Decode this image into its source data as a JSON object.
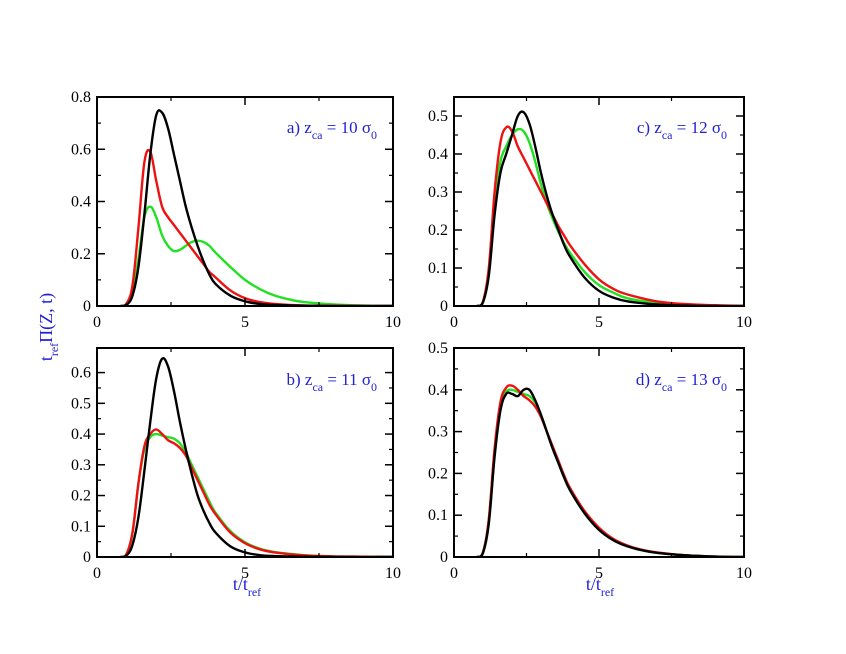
{
  "chart_data": {
    "type": "line",
    "xlabel": {
      "main": "t/t",
      "sub": "ref"
    },
    "ylabel": {
      "pre_main": "t",
      "pre_sub": "ref",
      "main": "Π(Z, t)"
    },
    "colors": {
      "black": "#000000",
      "red": "#ee1111",
      "green": "#22e022",
      "label": "#1f1fd6"
    },
    "panels": [
      {
        "id": "a",
        "label": {
          "prefix": "a) z",
          "sub": "ca",
          "mid": " = 10 σ",
          "sub2": "0"
        },
        "xlim": [
          0,
          10
        ],
        "ylim": [
          0,
          0.8
        ],
        "xticks": [
          0,
          5,
          10
        ],
        "yticks": [
          0,
          0.2,
          0.4,
          0.6,
          0.8
        ],
        "ytick_labels": [
          "0",
          "0.2",
          "0.4",
          "0.6",
          "0.8"
        ],
        "series": [
          {
            "name": "black",
            "color": "#000000",
            "x": [
              0.8,
              1.0,
              1.2,
              1.4,
              1.6,
              1.8,
              2.0,
              2.2,
              2.4,
              2.6,
              2.8,
              3.0,
              3.2,
              3.4,
              3.6,
              3.8,
              4.0,
              4.5,
              5.0,
              5.5,
              6.0,
              7.0,
              8.0,
              10.0
            ],
            "y": [
              0,
              0.005,
              0.04,
              0.15,
              0.35,
              0.58,
              0.73,
              0.74,
              0.68,
              0.58,
              0.48,
              0.38,
              0.3,
              0.23,
              0.17,
              0.12,
              0.085,
              0.04,
              0.018,
              0.008,
              0.004,
              0.001,
              0,
              0
            ]
          },
          {
            "name": "red",
            "color": "#ee1111",
            "x": [
              0.8,
              1.0,
              1.2,
              1.4,
              1.6,
              1.8,
              2.0,
              2.2,
              2.4,
              2.6,
              2.8,
              3.0,
              3.2,
              3.4,
              3.6,
              3.8,
              4.0,
              4.5,
              5.0,
              5.5,
              6.0,
              7.0,
              8.0,
              9.0,
              10.0
            ],
            "y": [
              0,
              0.01,
              0.08,
              0.3,
              0.55,
              0.59,
              0.48,
              0.38,
              0.34,
              0.31,
              0.28,
              0.25,
              0.22,
              0.19,
              0.16,
              0.13,
              0.11,
              0.06,
              0.03,
              0.015,
              0.008,
              0.002,
              0.001,
              0,
              0
            ]
          },
          {
            "name": "green",
            "color": "#22e022",
            "x": [
              0.8,
              1.0,
              1.2,
              1.4,
              1.6,
              1.8,
              2.0,
              2.2,
              2.4,
              2.6,
              2.8,
              3.0,
              3.2,
              3.4,
              3.6,
              3.8,
              4.0,
              4.5,
              5.0,
              5.5,
              6.0,
              6.5,
              7.0,
              8.0,
              9.0,
              10.0
            ],
            "y": [
              0,
              0.005,
              0.05,
              0.18,
              0.34,
              0.38,
              0.34,
              0.27,
              0.23,
              0.21,
              0.215,
              0.23,
              0.245,
              0.25,
              0.245,
              0.23,
              0.205,
              0.15,
              0.1,
              0.065,
              0.04,
              0.025,
              0.015,
              0.006,
              0.002,
              0
            ]
          }
        ]
      },
      {
        "id": "c",
        "label": {
          "prefix": "c) z",
          "sub": "ca",
          "mid": " = 12 σ",
          "sub2": "0"
        },
        "xlim": [
          0,
          10
        ],
        "ylim": [
          0,
          0.55
        ],
        "xticks": [
          0,
          5,
          10
        ],
        "yticks": [
          0,
          0.1,
          0.2,
          0.3,
          0.4,
          0.5
        ],
        "ytick_labels": [
          "0",
          "0.1",
          "0.2",
          "0.3",
          "0.4",
          "0.5"
        ],
        "series": [
          {
            "name": "black",
            "color": "#000000",
            "x": [
              0.8,
              1.0,
              1.2,
              1.4,
              1.6,
              1.8,
              2.0,
              2.2,
              2.4,
              2.6,
              2.8,
              3.0,
              3.2,
              3.4,
              3.6,
              3.8,
              4.0,
              4.5,
              5.0,
              5.5,
              6.0,
              7.0,
              8.0,
              9.0,
              10.0
            ],
            "y": [
              0,
              0.01,
              0.08,
              0.24,
              0.35,
              0.4,
              0.45,
              0.5,
              0.51,
              0.48,
              0.42,
              0.35,
              0.29,
              0.24,
              0.2,
              0.16,
              0.13,
              0.075,
              0.04,
              0.022,
              0.012,
              0.004,
              0.001,
              0,
              0
            ]
          },
          {
            "name": "red",
            "color": "#ee1111",
            "x": [
              0.8,
              1.0,
              1.2,
              1.4,
              1.6,
              1.8,
              2.0,
              2.2,
              2.4,
              2.6,
              2.8,
              3.0,
              3.2,
              3.4,
              3.6,
              3.8,
              4.0,
              4.5,
              5.0,
              5.5,
              6.0,
              7.0,
              8.0,
              9.0,
              10.0
            ],
            "y": [
              0,
              0.012,
              0.1,
              0.3,
              0.43,
              0.47,
              0.46,
              0.42,
              0.39,
              0.36,
              0.33,
              0.3,
              0.27,
              0.24,
              0.21,
              0.185,
              0.16,
              0.11,
              0.07,
              0.045,
              0.03,
              0.012,
              0.005,
              0.002,
              0
            ]
          },
          {
            "name": "green",
            "color": "#22e022",
            "x": [
              0.8,
              1.0,
              1.2,
              1.4,
              1.6,
              1.8,
              2.0,
              2.2,
              2.4,
              2.6,
              2.8,
              3.0,
              3.2,
              3.4,
              3.6,
              3.8,
              4.0,
              4.5,
              5.0,
              5.5,
              6.0,
              7.0,
              8.0,
              9.0,
              10.0
            ],
            "y": [
              0,
              0.01,
              0.09,
              0.27,
              0.38,
              0.42,
              0.45,
              0.465,
              0.46,
              0.43,
              0.38,
              0.32,
              0.27,
              0.23,
              0.195,
              0.165,
              0.14,
              0.09,
              0.055,
              0.035,
              0.02,
              0.008,
              0.003,
              0.001,
              0
            ]
          }
        ]
      },
      {
        "id": "b",
        "label": {
          "prefix": "b) z",
          "sub": "ca",
          "mid": " = 11 σ",
          "sub2": "0"
        },
        "xlim": [
          0,
          10
        ],
        "ylim": [
          0,
          0.68
        ],
        "xticks": [
          0,
          5,
          10
        ],
        "yticks": [
          0,
          0.1,
          0.2,
          0.3,
          0.4,
          0.5,
          0.6
        ],
        "ytick_labels": [
          "0",
          "0.1",
          "0.2",
          "0.3",
          "0.4",
          "0.5",
          "0.6"
        ],
        "series": [
          {
            "name": "black",
            "color": "#000000",
            "x": [
              0.8,
              1.0,
              1.2,
              1.4,
              1.6,
              1.8,
              2.0,
              2.2,
              2.4,
              2.6,
              2.8,
              3.0,
              3.2,
              3.4,
              3.6,
              3.8,
              4.0,
              4.5,
              5.0,
              5.5,
              6.0,
              7.0,
              8.0,
              10.0
            ],
            "y": [
              0,
              0.005,
              0.04,
              0.13,
              0.28,
              0.44,
              0.58,
              0.645,
              0.62,
              0.54,
              0.44,
              0.35,
              0.27,
              0.2,
              0.15,
              0.11,
              0.08,
              0.035,
              0.015,
              0.006,
              0.003,
              0.001,
              0,
              0
            ]
          },
          {
            "name": "red",
            "color": "#ee1111",
            "x": [
              0.8,
              1.0,
              1.2,
              1.4,
              1.6,
              1.8,
              2.0,
              2.2,
              2.4,
              2.6,
              2.8,
              3.0,
              3.2,
              3.4,
              3.6,
              3.8,
              4.0,
              4.5,
              5.0,
              5.5,
              6.0,
              7.0,
              8.0,
              9.0,
              10.0
            ],
            "y": [
              0,
              0.01,
              0.08,
              0.24,
              0.36,
              0.4,
              0.415,
              0.4,
              0.38,
              0.37,
              0.355,
              0.33,
              0.29,
              0.25,
              0.21,
              0.17,
              0.14,
              0.08,
              0.045,
              0.025,
              0.015,
              0.005,
              0.002,
              0.001,
              0
            ]
          },
          {
            "name": "green",
            "color": "#22e022",
            "x": [
              0.8,
              1.0,
              1.2,
              1.4,
              1.6,
              1.8,
              2.0,
              2.2,
              2.4,
              2.6,
              2.8,
              3.0,
              3.2,
              3.4,
              3.6,
              3.8,
              4.0,
              4.5,
              5.0,
              5.5,
              6.0,
              7.0,
              8.0,
              9.0,
              10.0
            ],
            "y": [
              0,
              0.01,
              0.08,
              0.24,
              0.35,
              0.39,
              0.4,
              0.395,
              0.39,
              0.385,
              0.37,
              0.34,
              0.3,
              0.26,
              0.22,
              0.18,
              0.145,
              0.085,
              0.048,
              0.027,
              0.016,
              0.006,
              0.002,
              0.001,
              0
            ]
          }
        ]
      },
      {
        "id": "d",
        "label": {
          "prefix": "d) z",
          "sub": "ca",
          "mid": " = 13 σ",
          "sub2": "0"
        },
        "xlim": [
          0,
          10
        ],
        "ylim": [
          0,
          0.5
        ],
        "xticks": [
          0,
          5,
          10
        ],
        "yticks": [
          0,
          0.1,
          0.2,
          0.3,
          0.4,
          0.5
        ],
        "ytick_labels": [
          "0",
          "0.1",
          "0.2",
          "0.3",
          "0.4",
          "0.5"
        ],
        "series": [
          {
            "name": "black",
            "color": "#000000",
            "x": [
              0.8,
              1.0,
              1.2,
              1.4,
              1.6,
              1.8,
              2.0,
              2.2,
              2.4,
              2.6,
              2.8,
              3.0,
              3.2,
              3.4,
              3.6,
              3.8,
              4.0,
              4.5,
              5.0,
              5.5,
              6.0,
              6.5,
              7.0,
              8.0,
              9.0,
              10.0
            ],
            "y": [
              0,
              0.01,
              0.08,
              0.24,
              0.35,
              0.39,
              0.39,
              0.385,
              0.4,
              0.4,
              0.375,
              0.34,
              0.3,
              0.26,
              0.225,
              0.19,
              0.16,
              0.105,
              0.065,
              0.04,
              0.025,
              0.016,
              0.01,
              0.004,
              0.001,
              0
            ]
          },
          {
            "name": "red",
            "color": "#ee1111",
            "x": [
              0.8,
              1.0,
              1.2,
              1.4,
              1.6,
              1.8,
              2.0,
              2.2,
              2.4,
              2.6,
              2.8,
              3.0,
              3.2,
              3.4,
              3.6,
              3.8,
              4.0,
              4.5,
              5.0,
              5.5,
              6.0,
              6.5,
              7.0,
              8.0,
              9.0,
              10.0
            ],
            "y": [
              0,
              0.011,
              0.09,
              0.26,
              0.37,
              0.405,
              0.41,
              0.4,
              0.385,
              0.375,
              0.36,
              0.335,
              0.3,
              0.265,
              0.23,
              0.195,
              0.165,
              0.11,
              0.07,
              0.043,
              0.027,
              0.017,
              0.011,
              0.004,
              0.001,
              0
            ]
          },
          {
            "name": "green",
            "color": "#22e022",
            "x": [
              0.8,
              1.0,
              1.2,
              1.4,
              1.6,
              1.8,
              2.0,
              2.2,
              2.4,
              2.6,
              2.8,
              3.0,
              3.2,
              3.4,
              3.6,
              3.8,
              4.0,
              4.5,
              5.0,
              5.5,
              6.0,
              6.5,
              7.0,
              8.0,
              9.0,
              10.0
            ],
            "y": [
              0,
              0.011,
              0.09,
              0.25,
              0.36,
              0.395,
              0.4,
              0.395,
              0.39,
              0.385,
              0.37,
              0.34,
              0.3,
              0.26,
              0.225,
              0.19,
              0.16,
              0.105,
              0.066,
              0.041,
              0.026,
              0.016,
              0.01,
              0.004,
              0.001,
              0
            ]
          }
        ]
      }
    ]
  }
}
